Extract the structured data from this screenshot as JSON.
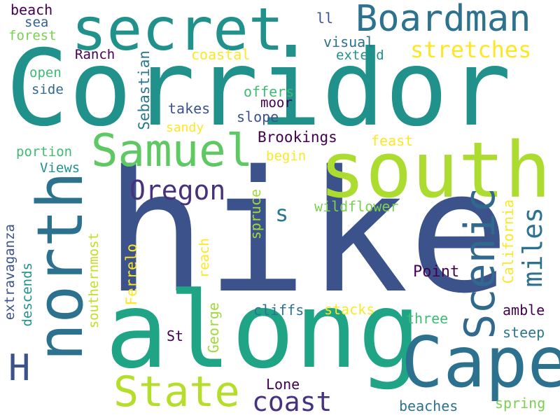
{
  "palette": [
    "#440154",
    "#3b528b",
    "#21918c",
    "#5ec962",
    "#fde725"
  ],
  "words": {
    "hike": "hike",
    "corridor": "Corridor",
    "along": "along",
    "south": "south",
    "north": "north",
    "cape": "Cape",
    "secret": "secret",
    "boardman": "Boardman",
    "samuel": "Samuel",
    "scenic": "Scenic",
    "state": "State",
    "oregon": "Oregon",
    "coast": "coast",
    "miles": "miles",
    "stretches": "stretches",
    "h": "H",
    "s": "s",
    "beach": "beach",
    "sea": "sea",
    "forest": "forest",
    "ll": "ll",
    "visual": "visual",
    "extend": "extend",
    "ranch": "Ranch",
    "coastal": "coastal",
    "open": "open",
    "side": "side",
    "sebastian": "Sebastian",
    "offers": "offers",
    "moor": "moor",
    "takes": "takes",
    "slope": "slope",
    "sandy": "sandy",
    "brookings": "Brookings",
    "feast": "feast",
    "portion": "portion",
    "begin": "begin",
    "views": "Views",
    "wildflower": "wildflower",
    "spruce": "spruce",
    "california": "California",
    "point": "Point",
    "reach": "reach",
    "ferrelo": "Ferrelo",
    "extravaganza": "extravaganza",
    "descends": "descends",
    "southernmost": "southernmost",
    "cliffs": "cliffs",
    "stacks": "stacks",
    "amble": "amble",
    "three": "three",
    "steep": "steep",
    "st": "St",
    "george": "George",
    "lone": "Lone",
    "beaches": "beaches",
    "spring": "spring"
  }
}
